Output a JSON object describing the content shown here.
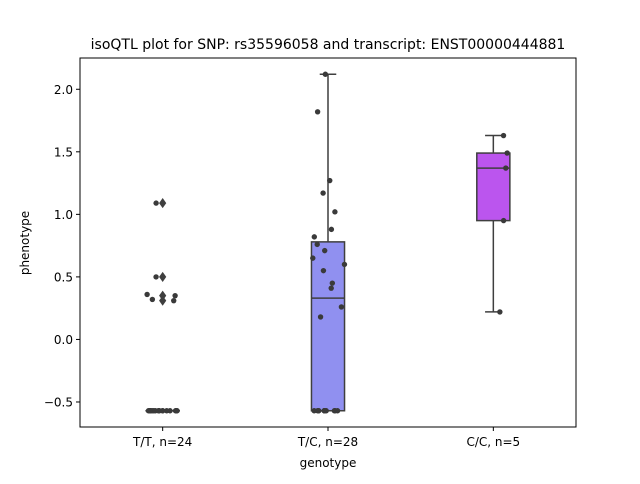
{
  "chart_data": {
    "type": "box",
    "title": "isoQTL plot for SNP: rs35596058 and transcript: ENST00000444881",
    "xlabel": "genotype",
    "ylabel": "phenotype",
    "ylim": [
      -0.7,
      2.25
    ],
    "yticks": [
      -0.5,
      0.0,
      0.5,
      1.0,
      1.5,
      2.0
    ],
    "ytick_labels": [
      "−0.5",
      "0.0",
      "0.5",
      "1.0",
      "1.5",
      "2.0"
    ],
    "grid": false,
    "categories": [
      "T/T, n=24",
      "T/C, n=28",
      "C/C, n=5"
    ],
    "groups": [
      {
        "label": "T/T, n=24",
        "color": "#7b7b7b",
        "box": {
          "q1": -0.57,
          "median": -0.57,
          "q3": -0.57,
          "whisker_low": -0.57,
          "whisker_high": -0.57
        },
        "outliers": [
          1.09,
          0.5,
          0.35,
          0.31
        ],
        "points": [
          -0.57,
          -0.57,
          -0.57,
          -0.57,
          -0.57,
          -0.57,
          -0.57,
          -0.57,
          -0.57,
          -0.57,
          -0.57,
          -0.57,
          -0.57,
          -0.57,
          -0.57,
          -0.57,
          -0.57,
          -0.57,
          1.09,
          0.5,
          0.36,
          0.35,
          0.32,
          0.31
        ]
      },
      {
        "label": "T/C, n=28",
        "color": "#9090f0",
        "box": {
          "q1": -0.57,
          "median": 0.33,
          "q3": 0.78,
          "whisker_low": -0.57,
          "whisker_high": 2.12
        },
        "outliers": [],
        "points": [
          2.12,
          1.82,
          1.27,
          1.17,
          1.02,
          0.88,
          0.82,
          0.76,
          0.71,
          0.65,
          0.6,
          0.55,
          0.45,
          0.41,
          0.26,
          0.18,
          -0.57,
          -0.57,
          -0.57,
          -0.57,
          -0.57,
          -0.57,
          -0.57,
          -0.57,
          -0.57,
          -0.57,
          -0.57,
          -0.57
        ]
      },
      {
        "label": "C/C, n=5",
        "color": "#bb55ee",
        "box": {
          "q1": 0.95,
          "median": 1.37,
          "q3": 1.49,
          "whisker_low": 0.22,
          "whisker_high": 1.63
        },
        "outliers": [],
        "points": [
          1.63,
          1.49,
          1.37,
          0.95,
          0.22
        ]
      }
    ]
  }
}
